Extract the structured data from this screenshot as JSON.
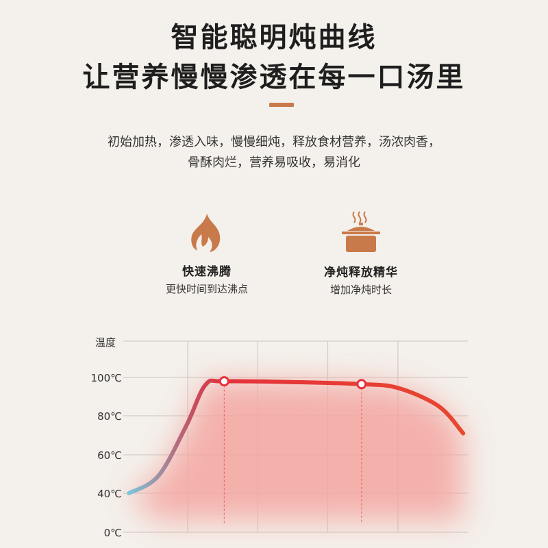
{
  "header": {
    "title_line1": "智能聪明炖曲线",
    "title_line2": "让营养慢慢渗透在每一口汤里",
    "accent_color": "#c97a4a"
  },
  "description": {
    "line1": "初始加热，渗透入味，慢慢细炖，释放食材营养，汤浓肉香，",
    "line2": "骨酥肉烂，营养易吸收，易消化"
  },
  "features": [
    {
      "icon": "flame-icon",
      "title": "快速沸腾",
      "subtitle": "更快时间到达沸点"
    },
    {
      "icon": "steaming-pot-icon",
      "title": "净炖释放精华",
      "subtitle": "增加净炖时长"
    }
  ],
  "chart_data": {
    "type": "line",
    "title": "",
    "ylabel": "温度",
    "xlabel": "",
    "y_ticks": [
      "0℃",
      "40℃",
      "60℃",
      "80℃",
      "100℃"
    ],
    "y_tick_values": [
      0,
      40,
      60,
      80,
      100
    ],
    "grid": true,
    "x_grid_columns": 5,
    "series": [
      {
        "x": [
          0.08,
          0.5,
          0.9,
          1.17,
          1.44,
          2.5,
          3.4,
          3.92,
          4.5,
          4.85
        ],
        "values": [
          40,
          49,
          75,
          96,
          98,
          97.5,
          96.5,
          94.5,
          85,
          71
        ],
        "color_start": "#7cc7dc",
        "color_end": "#e8472f",
        "fill": "#f4a6a0"
      }
    ],
    "markers": [
      {
        "x": 1.44,
        "value": 98
      },
      {
        "x": 3.4,
        "value": 96.5
      }
    ]
  }
}
